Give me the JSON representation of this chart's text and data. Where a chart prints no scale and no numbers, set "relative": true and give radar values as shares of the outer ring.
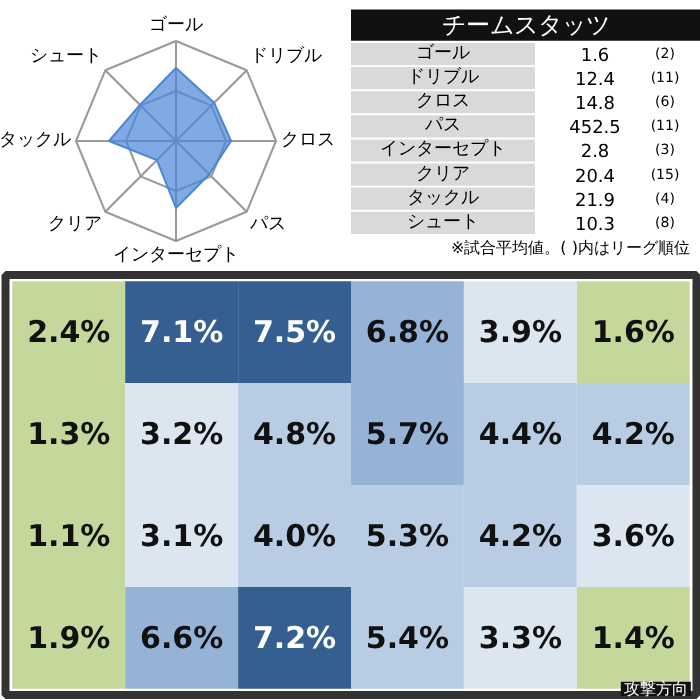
{
  "chart_data": [
    {
      "type": "radar",
      "relative": true,
      "categories": [
        "ゴール",
        "ドリブル",
        "クロス",
        "パス",
        "インターセプト",
        "クリア",
        "タックル",
        "シュート"
      ],
      "series": [
        {
          "color": "#4a86d8",
          "values": [
            0.73,
            0.54,
            0.55,
            0.47,
            0.67,
            0.27,
            0.67,
            0.51
          ]
        }
      ]
    },
    {
      "type": "other",
      "title": "チームスタッツ",
      "categories": [
        "ゴール",
        "ドリブル",
        "クロス",
        "パス",
        "インターセプト",
        "クリア",
        "タックル",
        "シュート"
      ],
      "data_labels": true,
      "series": [
        {
          "values": [
            1.6,
            12.4,
            14.8,
            452.5,
            2.8,
            20.4,
            21.9,
            10.3
          ]
        },
        {
          "values": [
            2,
            11,
            6,
            11,
            3,
            15,
            4,
            8
          ],
          "value_labels": [
            "(2)",
            "(11)",
            "(6)",
            "(11)",
            "(3)",
            "(15)",
            "(4)",
            "(8)"
          ]
        }
      ],
      "annotations": [
        "※試合平均値。(  )内はリーグ順位"
      ]
    },
    {
      "type": "heatmap",
      "categories": [
        null,
        null,
        null,
        null,
        null,
        null
      ],
      "y_categories": [
        null,
        null,
        null,
        null
      ],
      "cells": [
        [
          2.4,
          7.1,
          7.5,
          6.8,
          3.9,
          1.6
        ],
        [
          1.3,
          3.2,
          4.8,
          5.7,
          4.4,
          4.2
        ],
        [
          1.1,
          3.1,
          4.0,
          5.3,
          4.2,
          3.6
        ],
        [
          1.9,
          6.6,
          7.2,
          5.4,
          3.3,
          1.4
        ]
      ],
      "cell_labels": [
        [
          "2.4%",
          "7.1%",
          "7.5%",
          "6.8%",
          "3.9%",
          "1.6%"
        ],
        [
          "1.3%",
          "3.2%",
          "4.8%",
          "5.7%",
          "4.4%",
          "4.2%"
        ],
        [
          "1.1%",
          "3.1%",
          "4.0%",
          "5.3%",
          "4.2%",
          "3.6%"
        ],
        [
          "1.9%",
          "6.6%",
          "7.2%",
          "5.4%",
          "3.3%",
          "1.4%"
        ]
      ],
      "annotations": [
        "攻撃方向"
      ]
    }
  ]
}
